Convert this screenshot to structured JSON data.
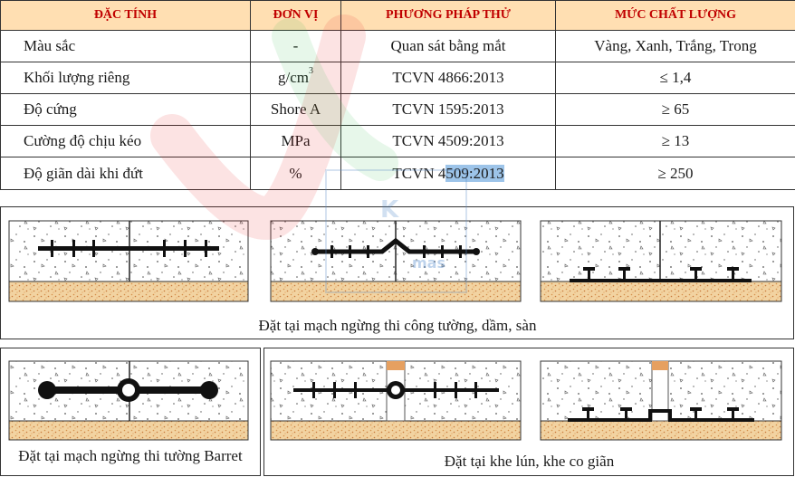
{
  "table": {
    "headers": [
      "ĐẶC TÍNH",
      "ĐƠN VỊ",
      "PHƯƠNG PHÁP THỬ",
      "MỨC CHẤT LƯỢNG"
    ],
    "rows": [
      {
        "property": "Màu sắc",
        "unit": "-",
        "method": "Quan sát bằng mắt",
        "level": "Vàng, Xanh, Trắng, Trong"
      },
      {
        "property": "Khối lượng riêng",
        "unit": "g/cm",
        "unit_sup": "3",
        "method": "TCVN 4866:2013",
        "level": "≤ 1,4"
      },
      {
        "property": "Độ cứng",
        "unit": "Shore A",
        "method": "TCVN 1595:2013",
        "level": "≥ 65"
      },
      {
        "property": "Cường độ chịu kéo",
        "unit": "MPa",
        "method": "TCVN 4509:2013",
        "level": "≥ 13"
      },
      {
        "property": "Độ giãn dài khi đứt",
        "unit": "%",
        "method_a": "TCVN 4",
        "method_b": "509:2013",
        "level": "≥ 250"
      }
    ]
  },
  "captions": {
    "construction_joint": "Đặt tại mạch ngừng thi công tường, dầm, sàn",
    "barrette_joint": "Đặt tại mạch ngừng thi tường Barret",
    "expansion_joint": "Đặt tại khe lún, khe co giãn"
  },
  "watermark": {
    "brand": "mas"
  },
  "colors": {
    "header_bg": "#ffd8a1",
    "header_text": "#c00000",
    "sand": "#f0cd95",
    "waterstop": "#111111",
    "highlight": "#9dc4e9"
  }
}
